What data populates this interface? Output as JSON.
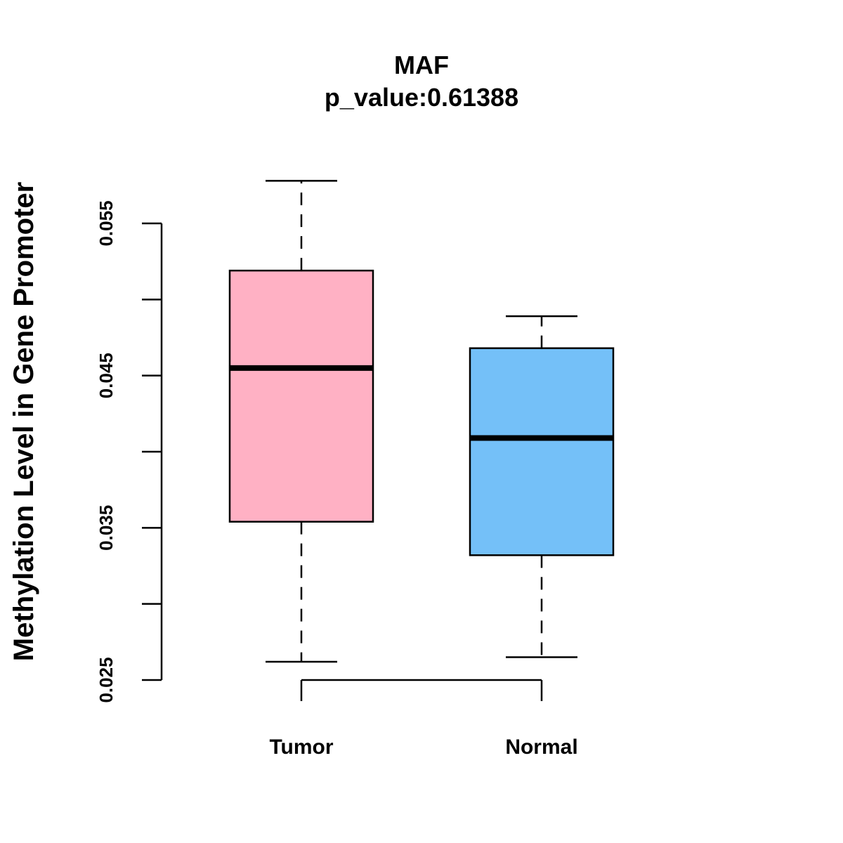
{
  "chart_data": {
    "type": "boxplot",
    "title": "MAF",
    "subtitle": "p_value:0.61388",
    "ylabel": "Methylation Level in Gene Promoter",
    "xlabel": "",
    "ylim": [
      0.025,
      0.055
    ],
    "y_ticks": [
      0.025,
      0.03,
      0.035,
      0.04,
      0.045,
      0.05,
      0.055
    ],
    "y_tick_labels": [
      "0.025",
      "",
      "0.035",
      "",
      "0.045",
      "",
      "0.055"
    ],
    "categories": [
      "Tumor",
      "Normal"
    ],
    "series": [
      {
        "name": "Tumor",
        "whisker_low": 0.0262,
        "q1": 0.0354,
        "median": 0.0455,
        "q3": 0.0519,
        "whisker_high": 0.0578,
        "color": "#FFB1C4"
      },
      {
        "name": "Normal",
        "whisker_low": 0.0265,
        "q1": 0.0332,
        "median": 0.0409,
        "q3": 0.0468,
        "whisker_high": 0.0489,
        "color": "#74C0F8"
      }
    ]
  }
}
